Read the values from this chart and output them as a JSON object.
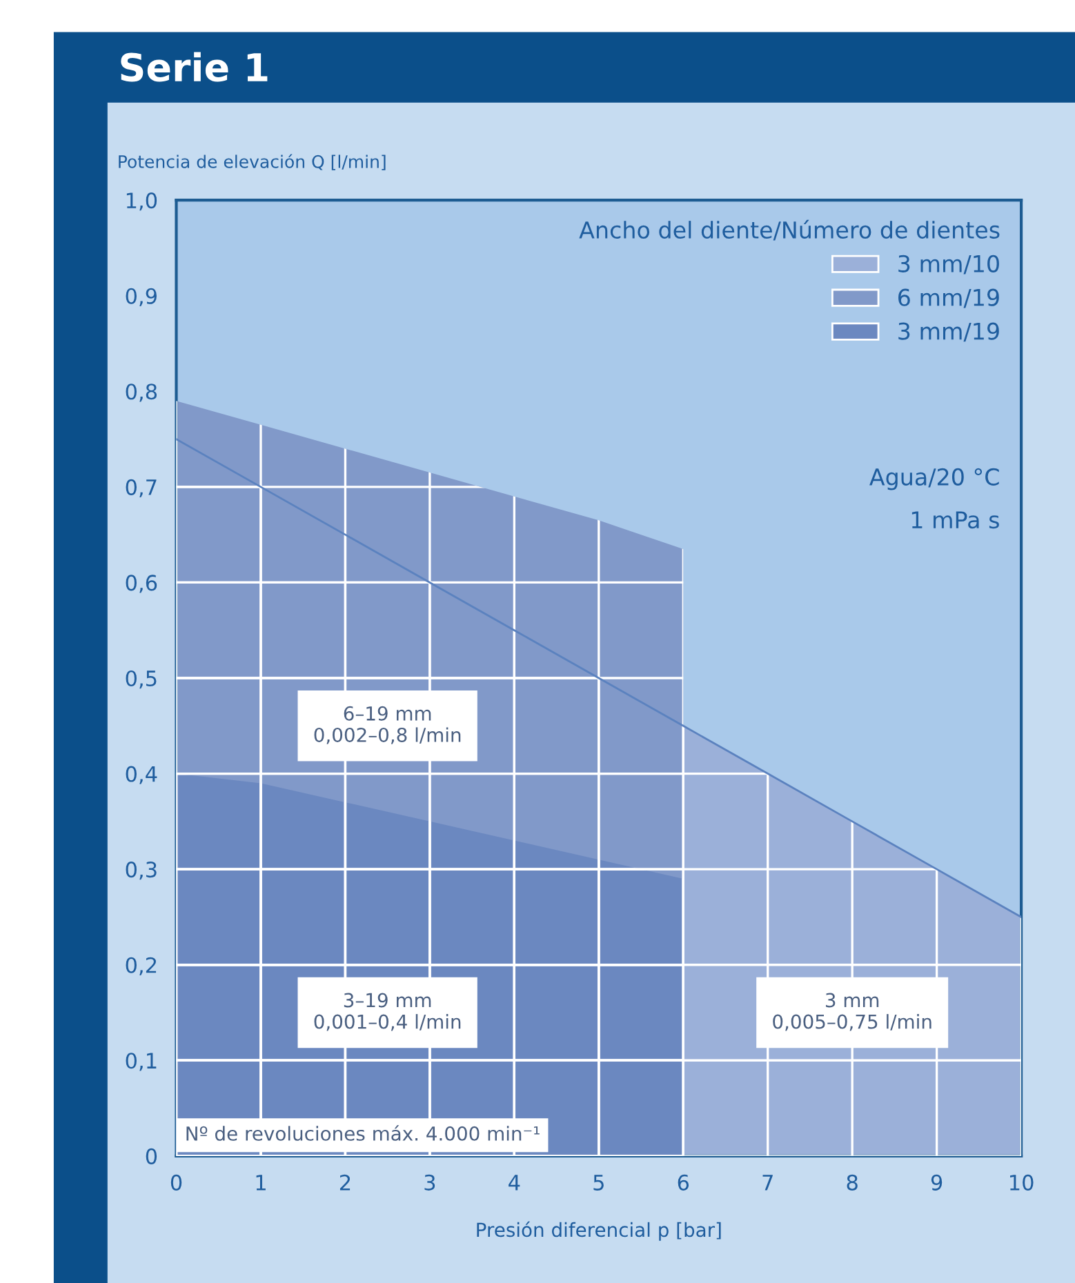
{
  "chart_data": {
    "type": "area",
    "title": "Serie 1",
    "xlabel": "Presión diferencial p [bar]",
    "ylabel": "Potencia de elevación Q [l/min]",
    "legend_title": "Ancho del diente/Número de dientes",
    "series": [
      {
        "name": "3 mm/10",
        "color": "#9bb0d9",
        "x": [
          0,
          1,
          2,
          3,
          4,
          5,
          6,
          7,
          8,
          9,
          10
        ],
        "values": [
          0.75,
          0.7,
          0.65,
          0.6,
          0.55,
          0.5,
          0.45,
          0.4,
          0.35,
          0.3,
          0.25
        ]
      },
      {
        "name": "6 mm/19",
        "color": "#8199c9",
        "x": [
          0,
          1,
          2,
          3,
          4,
          5,
          6
        ],
        "values": [
          0.79,
          0.765,
          0.74,
          0.715,
          0.69,
          0.665,
          0.635
        ]
      },
      {
        "name": "3 mm/19",
        "color": "#6b88c0",
        "x": [
          0,
          1,
          2,
          3,
          4,
          5,
          6
        ],
        "values": [
          0.4,
          0.39,
          0.37,
          0.35,
          0.33,
          0.31,
          0.29
        ]
      }
    ],
    "xlim": [
      0,
      10
    ],
    "xticks": [
      0,
      1,
      2,
      3,
      4,
      5,
      6,
      7,
      8,
      9,
      10
    ],
    "ylim": [
      0,
      1.0
    ],
    "yticks": [
      0,
      {
        "value": 0.1,
        "label": "0,1"
      },
      {
        "value": 0.2,
        "label": "0,2"
      },
      {
        "value": 0.3,
        "label": "0,3"
      },
      {
        "value": 0.4,
        "label": "0,4"
      },
      {
        "value": 0.5,
        "label": "0,5"
      },
      {
        "value": 0.6,
        "label": "0,6"
      },
      {
        "value": 0.7,
        "label": "0,7"
      },
      {
        "value": 0.8,
        "label": "0,8"
      },
      {
        "value": 0.9,
        "label": "0,9"
      },
      {
        "value": 1.0,
        "label": "1,0"
      }
    ],
    "grid": true,
    "legend": "top right",
    "annotations": [
      "6–19 mm\n0,002–0,8 l/min",
      "3–19 mm\n0,001–0,4 l/min",
      "3 mm\n0,005–0,75 l/min",
      "Nº de revoluciones máx. 4.000 min⁻¹",
      "Agua/20 °C",
      "1 mPa s"
    ]
  }
}
